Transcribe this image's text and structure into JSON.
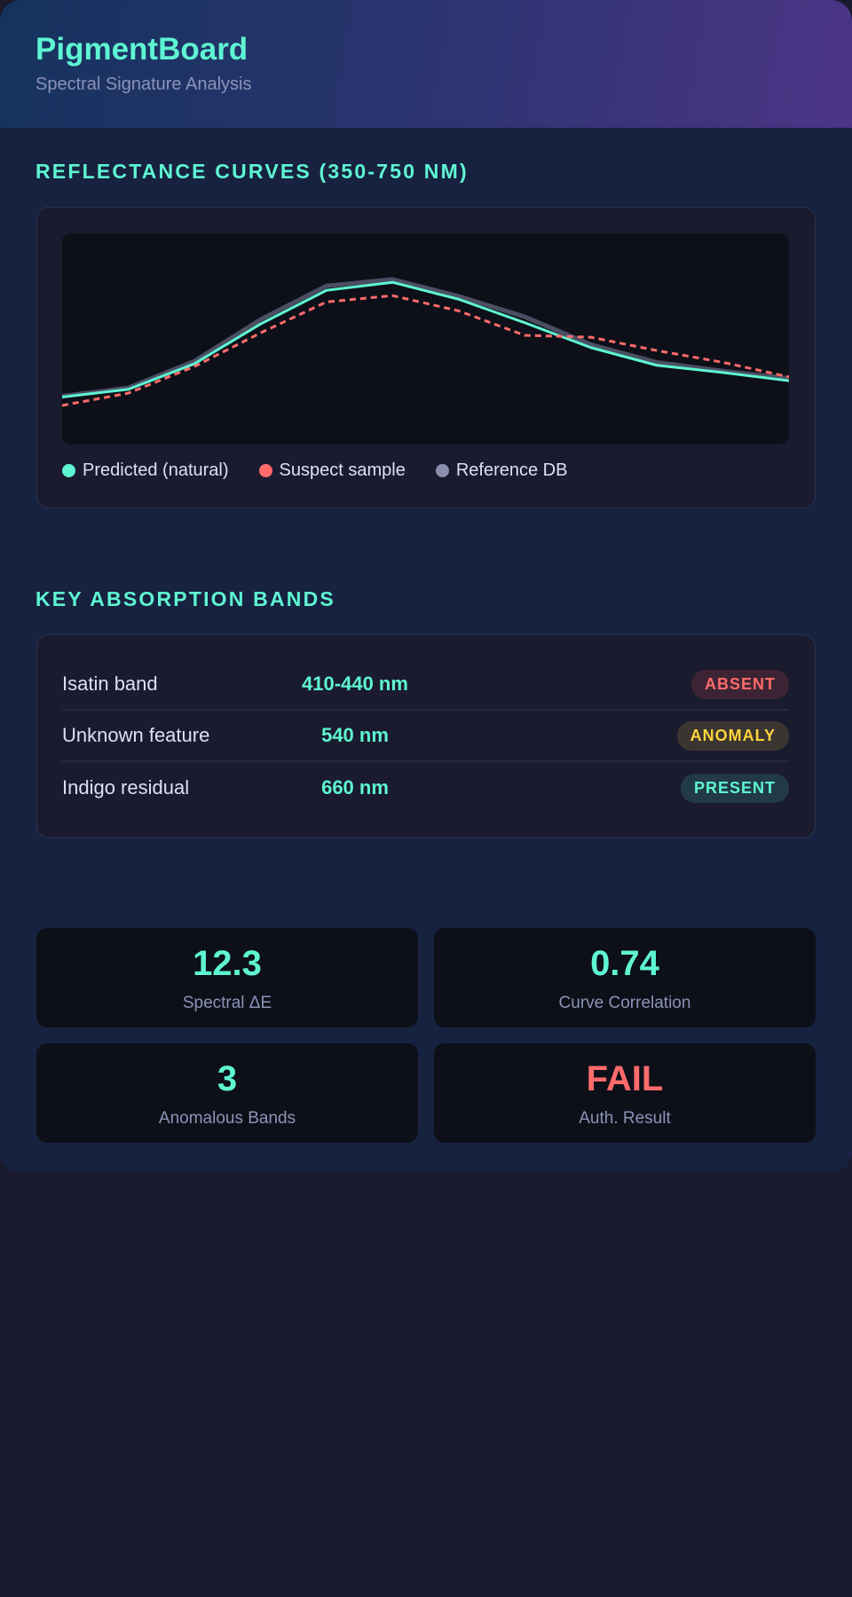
{
  "header": {
    "title": "PigmentBoard",
    "subtitle": "Spectral Signature Analysis"
  },
  "colors": {
    "accent": "#5ef5d2",
    "danger": "#ff6b6b",
    "warning": "#ffd43b",
    "reference": "#8a90ab"
  },
  "reflectance": {
    "section_title": "REFLECTANCE CURVES (350-750 NM)",
    "legend": [
      {
        "label": "Predicted (natural)",
        "color": "#5ef5d2"
      },
      {
        "label": "Suspect sample",
        "color": "#ff6b6b"
      },
      {
        "label": "Reference DB",
        "color": "#8a90ab"
      }
    ]
  },
  "chart_data": {
    "type": "line",
    "title": "REFLECTANCE CURVES (350-750 NM)",
    "x_range": [
      350,
      750
    ],
    "ylim": [
      0,
      1
    ],
    "grid": false,
    "legend_placement": "bottom-left",
    "series": [
      {
        "name": "Reference DB",
        "color": "#8a90ab",
        "style": "solid",
        "values": [
          0.229,
          0.268,
          0.394,
          0.591,
          0.751,
          0.782,
          0.702,
          0.605,
          0.473,
          0.389,
          0.348,
          0.313
        ]
      },
      {
        "name": "Predicted (natural)",
        "color": "#5ef5d2",
        "style": "solid",
        "values": [
          0.225,
          0.261,
          0.382,
          0.57,
          0.73,
          0.768,
          0.688,
          0.577,
          0.459,
          0.375,
          0.341,
          0.302
        ]
      },
      {
        "name": "Suspect sample",
        "color": "#ff6b6b",
        "style": "dashed",
        "values": [
          0.185,
          0.243,
          0.369,
          0.528,
          0.675,
          0.705,
          0.633,
          0.517,
          0.508,
          0.445,
          0.389,
          0.32
        ]
      }
    ]
  },
  "bands": {
    "section_title": "KEY ABSORPTION BANDS",
    "rows": [
      {
        "label": "Isatin band",
        "value": "410-440 nm",
        "status": "ABSENT",
        "status_color": "#ff6b6b",
        "status_bg": "#3d2434"
      },
      {
        "label": "Unknown feature",
        "value": "540 nm",
        "status": "ANOMALY",
        "status_color": "#ffd43b",
        "status_bg": "#3a3530"
      },
      {
        "label": "Indigo residual",
        "value": "660 nm",
        "status": "PRESENT",
        "status_color": "#5ef5d2",
        "status_bg": "#213a45"
      }
    ]
  },
  "stats": [
    {
      "value": "12.3",
      "label": "Spectral ΔE",
      "color": "#5ef5d2"
    },
    {
      "value": "0.74",
      "label": "Curve Correlation",
      "color": "#5ef5d2"
    },
    {
      "value": "3",
      "label": "Anomalous Bands",
      "color": "#5ef5d2"
    },
    {
      "value": "FAIL",
      "label": "Auth. Result",
      "color": "#ff6b6b"
    }
  ]
}
